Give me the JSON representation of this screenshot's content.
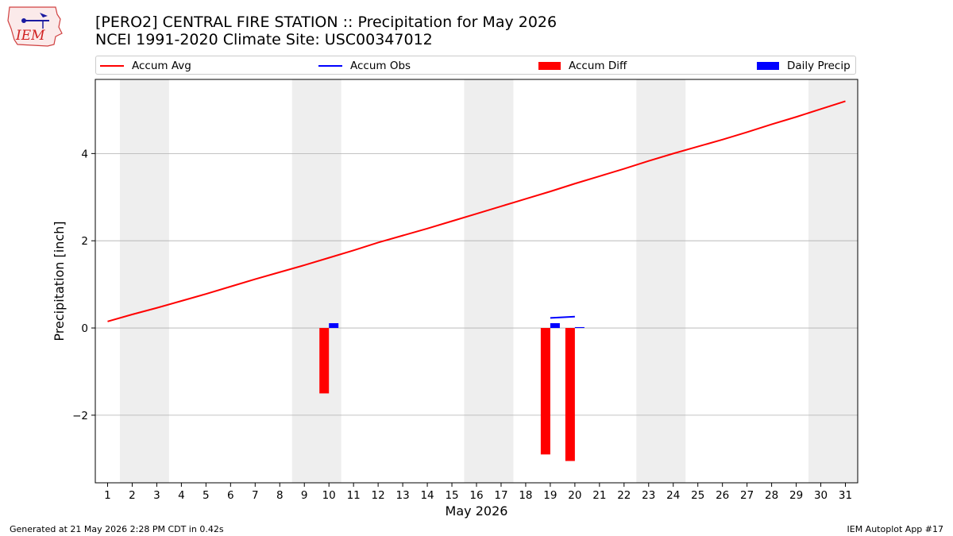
{
  "header": {
    "title_line1": "[PERO2] CENTRAL FIRE STATION :: Precipitation for May 2026",
    "title_line2": "NCEI 1991-2020 Climate Site: USC00347012"
  },
  "logo": {
    "text": "IEM"
  },
  "legend": {
    "placement": "top",
    "items": [
      {
        "label": "Accum Avg",
        "kind": "line",
        "color": "#ff0000"
      },
      {
        "label": "Accum Obs",
        "kind": "line",
        "color": "#0000ff"
      },
      {
        "label": "Accum Diff",
        "kind": "patch",
        "color": "#ff0000"
      },
      {
        "label": "Daily Precip",
        "kind": "patch",
        "color": "#0000ff"
      }
    ]
  },
  "footer": {
    "left": "Generated at 21 May 2026 2:28 PM CDT in 0.42s",
    "right": "IEM Autoplot App #17"
  },
  "chart_data": {
    "type": "line",
    "title": "[PERO2] CENTRAL FIRE STATION :: Precipitation for May 2026",
    "subtitle": "NCEI 1991-2020 Climate Site: USC00347012",
    "xlabel": "May 2026",
    "ylabel": "Precipitation [inch]",
    "xlim": [
      0.5,
      31.5
    ],
    "ylim": [
      -3.55,
      5.7
    ],
    "x_ticks": [
      "1",
      "2",
      "3",
      "4",
      "5",
      "6",
      "7",
      "8",
      "9",
      "10",
      "11",
      "12",
      "13",
      "14",
      "15",
      "16",
      "17",
      "18",
      "19",
      "20",
      "21",
      "22",
      "23",
      "24",
      "25",
      "26",
      "27",
      "28",
      "29",
      "30",
      "31"
    ],
    "y_ticks": [
      -2,
      0,
      2,
      4
    ],
    "y_tick_labels": [
      "−2",
      "0",
      "2",
      "4"
    ],
    "grid": "horizontal",
    "weekend_bands": [
      [
        1.5,
        3.5
      ],
      [
        8.5,
        10.5
      ],
      [
        15.5,
        17.5
      ],
      [
        22.5,
        24.5
      ],
      [
        29.5,
        31.5
      ]
    ],
    "colors": {
      "avg": "#ff0000",
      "obs": "#0000ff",
      "diff": "#ff0000",
      "daily": "#0000ff",
      "weekend": "#eeeeee",
      "grid": "#b0b0b0"
    },
    "series": [
      {
        "name": "Accum Avg",
        "kind": "line",
        "x": [
          1,
          2,
          3,
          4,
          5,
          6,
          7,
          8,
          9,
          10,
          11,
          12,
          13,
          14,
          15,
          16,
          17,
          18,
          19,
          20,
          21,
          22,
          23,
          24,
          25,
          26,
          27,
          28,
          29,
          30,
          31
        ],
        "values": [
          0.15,
          0.31,
          0.46,
          0.62,
          0.78,
          0.95,
          1.12,
          1.28,
          1.44,
          1.61,
          1.78,
          1.96,
          2.12,
          2.28,
          2.45,
          2.62,
          2.79,
          2.96,
          3.13,
          3.31,
          3.48,
          3.65,
          3.83,
          4.0,
          4.16,
          4.32,
          4.49,
          4.67,
          4.84,
          5.02,
          5.2
        ]
      },
      {
        "name": "Accum Obs",
        "kind": "line",
        "x": [
          19,
          20
        ],
        "values": [
          0.23,
          0.26
        ]
      },
      {
        "name": "Accum Diff",
        "kind": "bar",
        "x": [
          10,
          19,
          20
        ],
        "values": [
          -1.5,
          -2.9,
          -3.05
        ]
      },
      {
        "name": "Daily Precip",
        "kind": "bar",
        "x": [
          10,
          19,
          20
        ],
        "values": [
          0.11,
          0.11,
          0.02
        ]
      }
    ]
  }
}
